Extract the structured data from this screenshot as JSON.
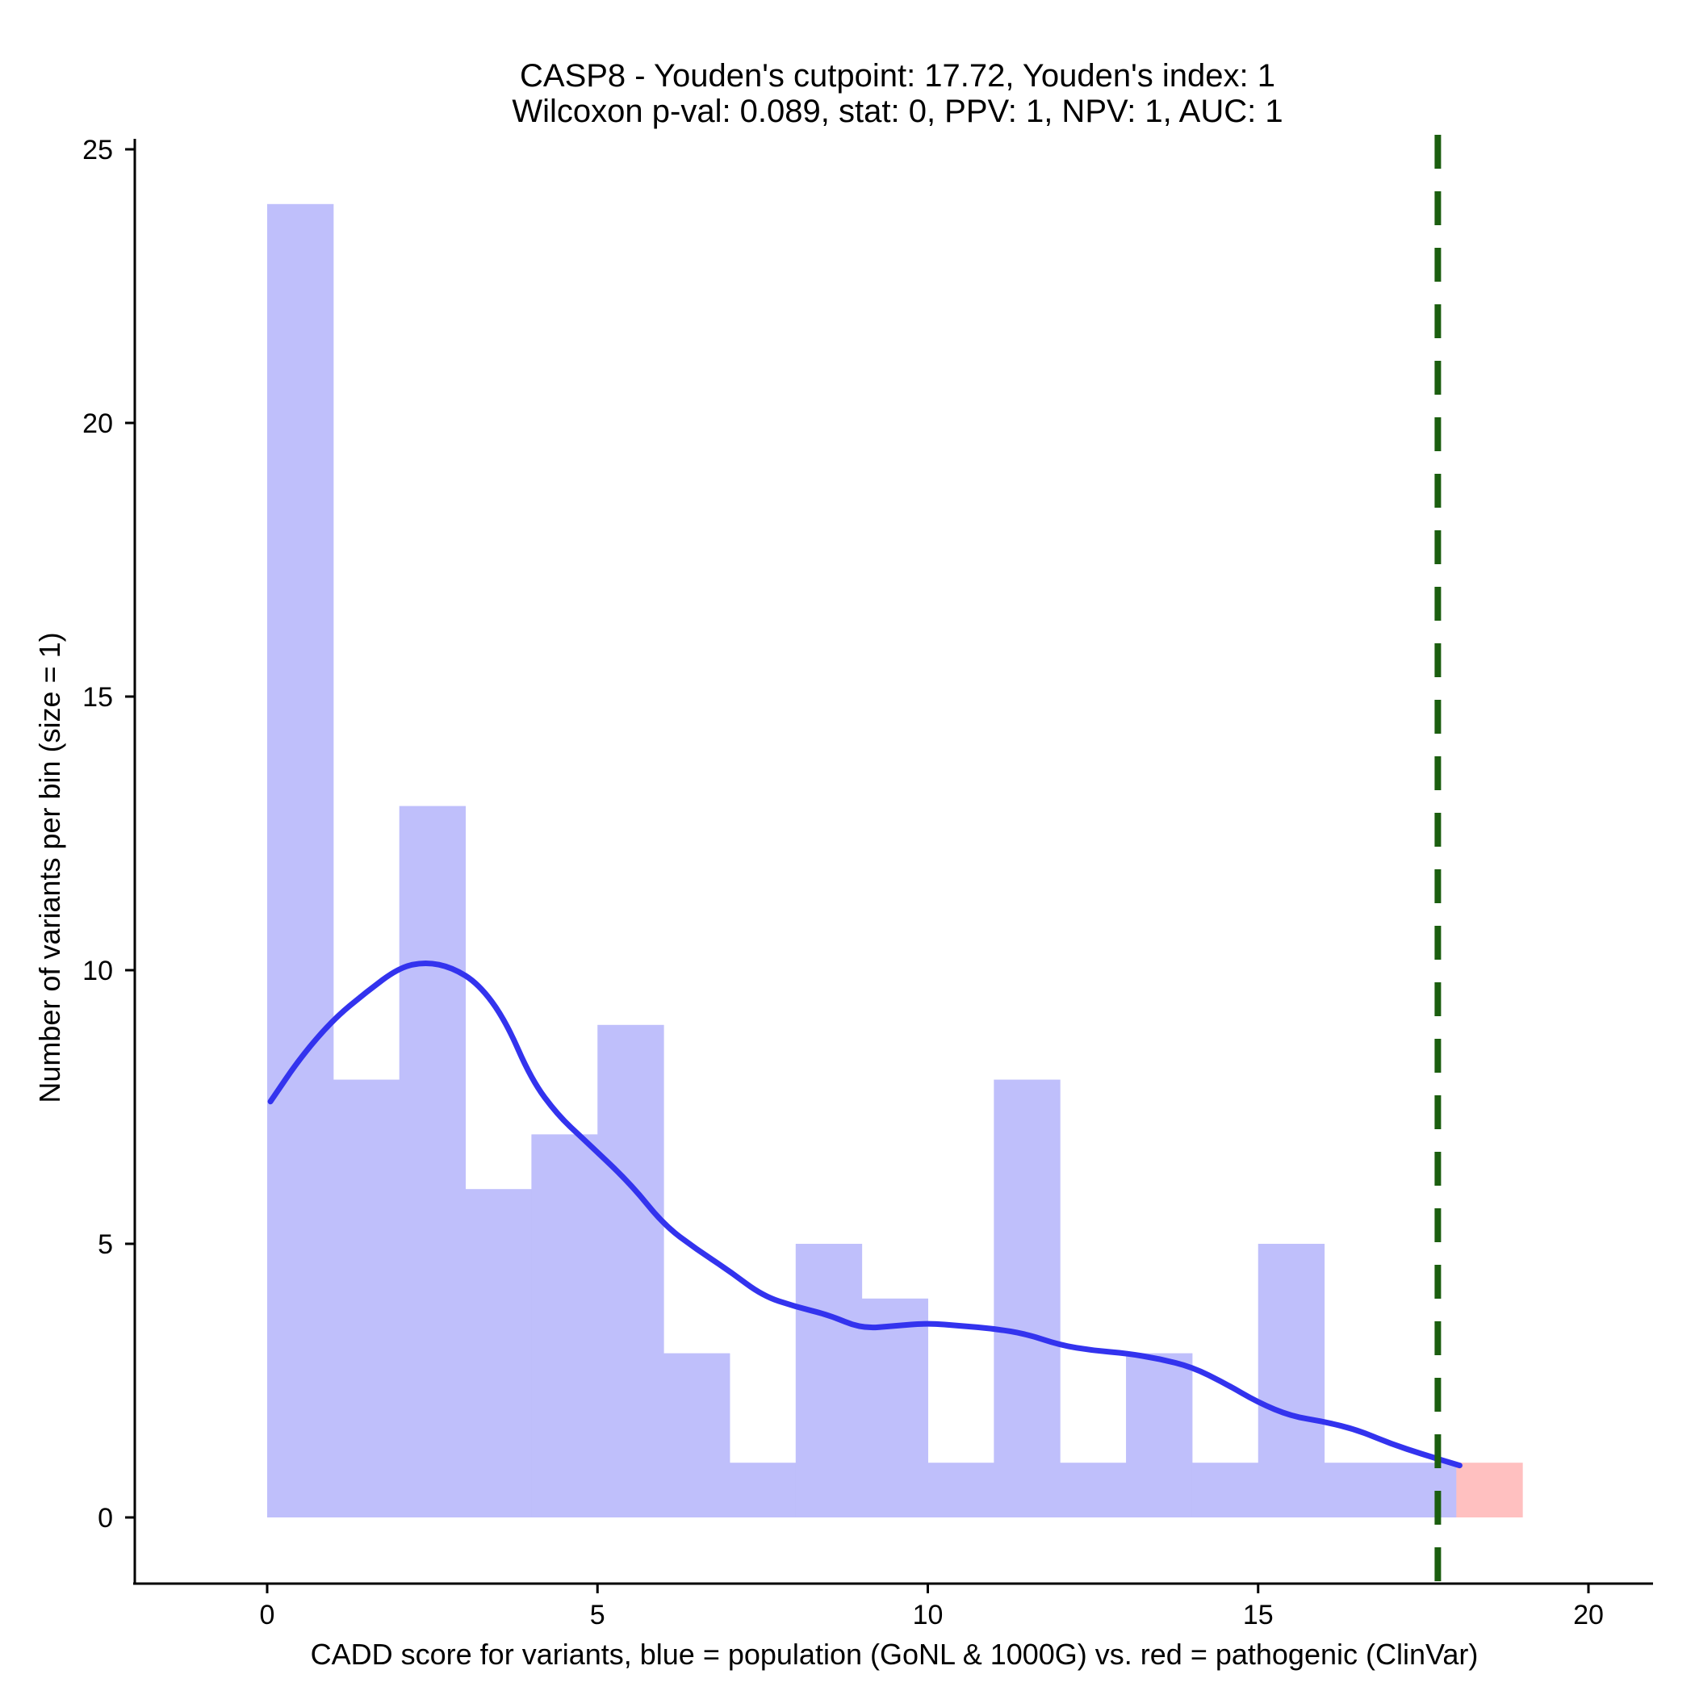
{
  "chart_data": {
    "type": "bar",
    "title_lines": [
      "CASP8 - Youden's cutpoint: 17.72, Youden's index: 1",
      "Wilcoxon p-val: 0.089, stat: 0, PPV: 1, NPV: 1, AUC: 1"
    ],
    "xlabel": "CADD score for variants, blue = population (GoNL & 1000G) vs. red = pathogenic (ClinVar)",
    "ylabel": "Number of variants per bin (size = 1)",
    "xlim": [
      -2,
      21
    ],
    "ylim": [
      -1.2,
      25.3
    ],
    "x_ticks": [
      0,
      5,
      10,
      15,
      20
    ],
    "y_ticks": [
      0,
      5,
      10,
      15,
      20,
      25
    ],
    "bin_size": 1,
    "series": [
      {
        "name": "population",
        "color": "#bfbffb",
        "bins": [
          {
            "start": 0,
            "end": 1,
            "count": 24
          },
          {
            "start": 1,
            "end": 2,
            "count": 8
          },
          {
            "start": 2,
            "end": 3,
            "count": 13
          },
          {
            "start": 3,
            "end": 4,
            "count": 6
          },
          {
            "start": 4,
            "end": 5,
            "count": 7
          },
          {
            "start": 5,
            "end": 6,
            "count": 9
          },
          {
            "start": 6,
            "end": 7,
            "count": 3
          },
          {
            "start": 7,
            "end": 8,
            "count": 1
          },
          {
            "start": 8,
            "end": 9,
            "count": 5
          },
          {
            "start": 9,
            "end": 10,
            "count": 4
          },
          {
            "start": 10,
            "end": 11,
            "count": 1
          },
          {
            "start": 11,
            "end": 12,
            "count": 8
          },
          {
            "start": 12,
            "end": 13,
            "count": 1
          },
          {
            "start": 13,
            "end": 14,
            "count": 3
          },
          {
            "start": 14,
            "end": 15,
            "count": 1
          },
          {
            "start": 15,
            "end": 16,
            "count": 5
          },
          {
            "start": 16,
            "end": 17,
            "count": 1
          },
          {
            "start": 17,
            "end": 18,
            "count": 1
          }
        ]
      },
      {
        "name": "pathogenic",
        "color": "#ffc0c0",
        "bins": [
          {
            "start": 18,
            "end": 19,
            "count": 1
          }
        ]
      }
    ],
    "density_curve": {
      "color": "#3333ee",
      "points": [
        [
          0.05,
          7.6
        ],
        [
          0.5,
          8.4
        ],
        [
          1.0,
          9.1
        ],
        [
          1.5,
          9.6
        ],
        [
          2.0,
          10.05
        ],
        [
          2.4,
          10.15
        ],
        [
          2.8,
          10.05
        ],
        [
          3.2,
          9.75
        ],
        [
          3.6,
          9.1
        ],
        [
          4.0,
          8.0
        ],
        [
          4.4,
          7.35
        ],
        [
          4.8,
          6.9
        ],
        [
          5.5,
          6.1
        ],
        [
          6.0,
          5.35
        ],
        [
          6.5,
          4.9
        ],
        [
          7.0,
          4.5
        ],
        [
          7.5,
          4.05
        ],
        [
          8.0,
          3.85
        ],
        [
          8.5,
          3.7
        ],
        [
          9.0,
          3.45
        ],
        [
          9.5,
          3.5
        ],
        [
          10.0,
          3.55
        ],
        [
          10.5,
          3.5
        ],
        [
          11.0,
          3.45
        ],
        [
          11.5,
          3.35
        ],
        [
          12.0,
          3.15
        ],
        [
          12.5,
          3.05
        ],
        [
          13.0,
          3.0
        ],
        [
          13.5,
          2.9
        ],
        [
          14.0,
          2.75
        ],
        [
          14.5,
          2.45
        ],
        [
          15.0,
          2.1
        ],
        [
          15.5,
          1.85
        ],
        [
          16.0,
          1.75
        ],
        [
          16.5,
          1.6
        ],
        [
          17.0,
          1.35
        ],
        [
          17.5,
          1.15
        ],
        [
          18.05,
          0.95
        ]
      ]
    },
    "cutpoint": {
      "x": 17.72,
      "color": "#1b5e0f",
      "style": "dashed"
    },
    "legend": "none",
    "grid": false
  }
}
